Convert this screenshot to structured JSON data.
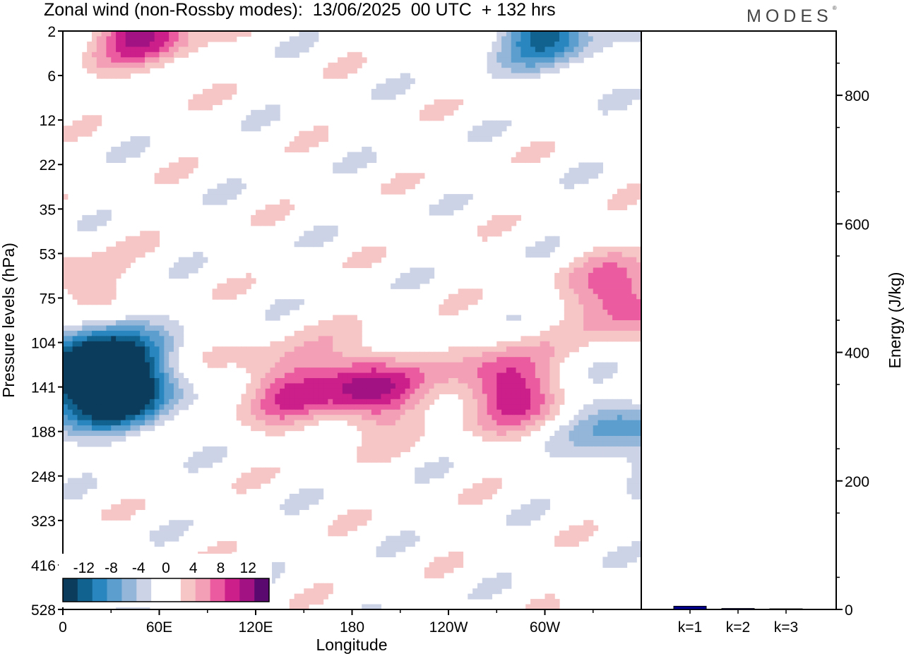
{
  "title": "Zonal wind (non-Rossby modes):  13/06/2025  00 UTC  + 132 hrs",
  "brand": "MODES",
  "brand_mark": "®",
  "chart_data": [
    {
      "type": "heatmap",
      "variable": "Zonal wind",
      "xlabel": "Longitude",
      "ylabel": "Pressure levels (hPa)",
      "x_ticks": [
        "0",
        "60E",
        "120E",
        "180",
        "120W",
        "60W"
      ],
      "x_tick_values": [
        0,
        60,
        120,
        180,
        240,
        300
      ],
      "xlim": [
        0,
        360
      ],
      "y_ticks": [
        "2",
        "6",
        "12",
        "22",
        "35",
        "53",
        "75",
        "104",
        "141",
        "188",
        "248",
        "323",
        "416",
        "528"
      ],
      "colorbar": {
        "labels": [
          "-12",
          "-8",
          "-4",
          "0",
          "4",
          "8",
          "12"
        ],
        "label_values": [
          -12,
          -8,
          -4,
          0,
          4,
          8,
          12
        ],
        "levels": [
          -14,
          -12,
          -10,
          -8,
          -6,
          -4,
          -2,
          2,
          4,
          6,
          8,
          10,
          12,
          14
        ],
        "colors": [
          "#0c3c5c",
          "#11628f",
          "#2a86bf",
          "#5c9fcf",
          "#93b6d9",
          "#cdd3e6",
          "#ffffff",
          "#ffffff",
          "#f6c6c6",
          "#f3a0b7",
          "#ea5c9f",
          "#cc1f8a",
          "#a31282",
          "#5a0a6e"
        ]
      },
      "features": [
        {
          "lon": 40,
          "level": "141",
          "value": -14
        },
        {
          "lon": 8,
          "level": "141",
          "value": -11
        },
        {
          "lon": 22,
          "level": "104",
          "value": -10
        },
        {
          "lon": 135,
          "level": "141",
          "value": 7
        },
        {
          "lon": 190,
          "level": "141",
          "value": 11
        },
        {
          "lon": 275,
          "level": "141",
          "value": 10
        },
        {
          "lon": 350,
          "level": "75",
          "value": 9
        },
        {
          "lon": 10,
          "level": "75",
          "value": 6
        },
        {
          "lon": 300,
          "level": "2",
          "value": -10
        },
        {
          "lon": 50,
          "level": "2",
          "value": 10
        },
        {
          "lon": 350,
          "level": "188",
          "value": -7
        }
      ]
    },
    {
      "type": "bar",
      "categories": [
        "k=1",
        "k=2",
        "k=3"
      ],
      "values": [
        5,
        1.5,
        1
      ],
      "ylabel": "Energy (J/kg)",
      "ylim": [
        0,
        900
      ],
      "y_ticks": [
        0,
        200,
        400,
        600,
        800
      ],
      "bar_color": "#00008b"
    }
  ]
}
